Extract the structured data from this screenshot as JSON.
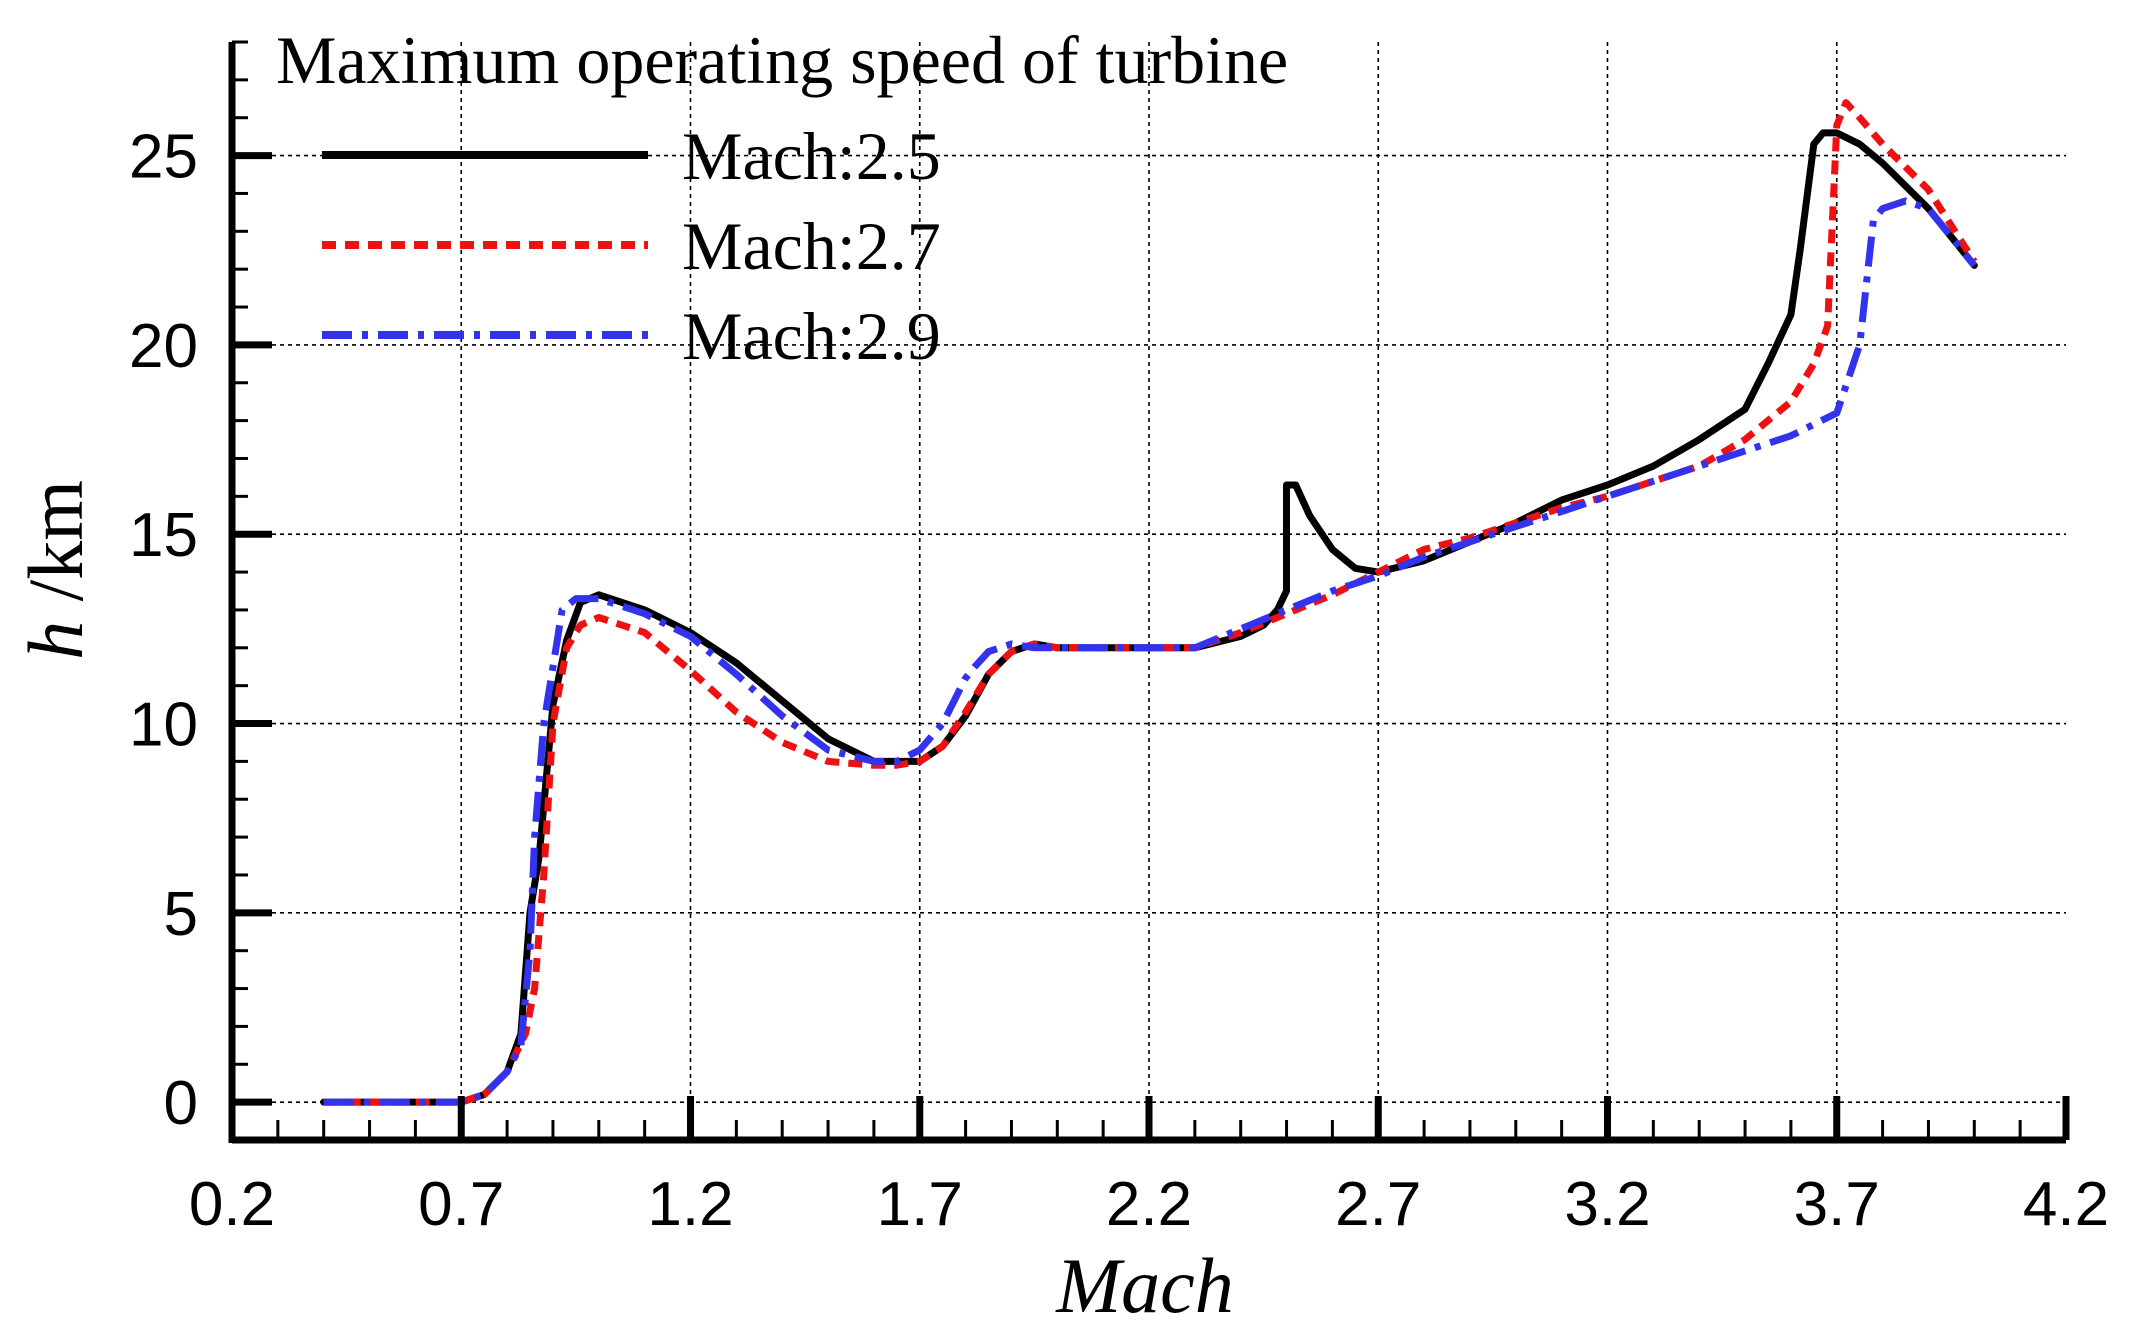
{
  "chart_data": {
    "type": "line",
    "title": "",
    "legend_title": "Maximum operating speed of turbine",
    "legend_position": "top-left",
    "xlabel": "Mach",
    "ylabel_var": "h",
    "ylabel_unit": " /km",
    "xlim": [
      0.2,
      4.2
    ],
    "ylim": [
      -1,
      28
    ],
    "xticks": [
      0.2,
      0.7,
      1.2,
      1.7,
      2.2,
      2.7,
      3.2,
      3.7,
      4.2
    ],
    "xtick_labels": [
      "0.2",
      "0.7",
      "1.2",
      "1.7",
      "2.2",
      "2.7",
      "3.2",
      "3.7",
      "4.2"
    ],
    "yticks": [
      0,
      5,
      10,
      15,
      20,
      25
    ],
    "ytick_labels": [
      "0",
      "5",
      "10",
      "15",
      "20",
      "25"
    ],
    "grid": true,
    "series": [
      {
        "name": "Mach:2.5",
        "color": "#000000",
        "style": "solid",
        "x": [
          0.4,
          0.5,
          0.6,
          0.7,
          0.75,
          0.8,
          0.83,
          0.85,
          0.87,
          0.9,
          0.93,
          0.96,
          1.0,
          1.1,
          1.2,
          1.3,
          1.4,
          1.5,
          1.6,
          1.65,
          1.7,
          1.75,
          1.8,
          1.85,
          1.9,
          1.95,
          2.0,
          2.1,
          2.2,
          2.3,
          2.4,
          2.45,
          2.48,
          2.5,
          2.5,
          2.52,
          2.55,
          2.6,
          2.65,
          2.7,
          2.8,
          2.9,
          3.0,
          3.1,
          3.2,
          3.3,
          3.4,
          3.5,
          3.55,
          3.6,
          3.62,
          3.65,
          3.67,
          3.7,
          3.75,
          3.8,
          3.9,
          4.0
        ],
        "values": [
          0,
          0,
          0,
          0,
          0.2,
          0.8,
          1.8,
          5.0,
          6.5,
          10.5,
          12.2,
          13.2,
          13.4,
          13.0,
          12.4,
          11.6,
          10.6,
          9.6,
          9.0,
          9.0,
          9.0,
          9.4,
          10.2,
          11.3,
          11.9,
          12.1,
          12.0,
          12.0,
          12.0,
          12.0,
          12.3,
          12.6,
          13.0,
          13.5,
          16.3,
          16.3,
          15.5,
          14.6,
          14.1,
          14.0,
          14.3,
          14.8,
          15.3,
          15.9,
          16.3,
          16.8,
          17.5,
          18.3,
          19.5,
          20.8,
          22.5,
          25.3,
          25.6,
          25.6,
          25.3,
          24.8,
          23.6,
          22.1
        ]
      },
      {
        "name": "Mach:2.7",
        "color": "#ee1111",
        "style": "dashed",
        "x": [
          0.4,
          0.5,
          0.6,
          0.7,
          0.75,
          0.8,
          0.84,
          0.86,
          0.88,
          0.9,
          0.93,
          0.96,
          1.0,
          1.1,
          1.2,
          1.3,
          1.4,
          1.5,
          1.6,
          1.65,
          1.7,
          1.75,
          1.8,
          1.85,
          1.9,
          1.95,
          2.0,
          2.1,
          2.2,
          2.3,
          2.4,
          2.5,
          2.6,
          2.7,
          2.8,
          2.9,
          3.0,
          3.1,
          3.2,
          3.3,
          3.4,
          3.5,
          3.6,
          3.65,
          3.68,
          3.7,
          3.72,
          3.75,
          3.8,
          3.9,
          4.0
        ],
        "values": [
          0,
          0,
          0,
          0,
          0.2,
          0.8,
          1.8,
          3.0,
          6.0,
          10.0,
          12.0,
          12.6,
          12.8,
          12.4,
          11.4,
          10.3,
          9.5,
          9.0,
          8.9,
          8.9,
          9.0,
          9.4,
          10.3,
          11.3,
          11.9,
          12.1,
          12.0,
          12.0,
          12.0,
          12.0,
          12.4,
          12.9,
          13.4,
          14.0,
          14.6,
          14.9,
          15.3,
          15.7,
          16.0,
          16.4,
          16.8,
          17.5,
          18.5,
          19.5,
          20.5,
          25.8,
          26.4,
          26.0,
          25.3,
          24.1,
          22.2
        ]
      },
      {
        "name": "Mach:2.9",
        "color": "#3333ee",
        "style": "dashdot",
        "x": [
          0.4,
          0.5,
          0.6,
          0.7,
          0.75,
          0.8,
          0.83,
          0.85,
          0.86,
          0.88,
          0.9,
          0.92,
          0.95,
          1.0,
          1.1,
          1.2,
          1.3,
          1.4,
          1.5,
          1.6,
          1.65,
          1.7,
          1.75,
          1.8,
          1.82,
          1.85,
          1.9,
          1.95,
          2.0,
          2.1,
          2.2,
          2.3,
          2.4,
          2.5,
          2.6,
          2.7,
          2.8,
          2.9,
          3.0,
          3.1,
          3.2,
          3.3,
          3.4,
          3.5,
          3.6,
          3.7,
          3.75,
          3.78,
          3.8,
          3.85,
          3.9,
          4.0
        ],
        "values": [
          0,
          0,
          0,
          0,
          0.2,
          0.8,
          1.5,
          4.0,
          7.0,
          10.0,
          11.5,
          13.0,
          13.3,
          13.3,
          12.9,
          12.3,
          11.3,
          10.2,
          9.3,
          9.0,
          9.0,
          9.3,
          10.0,
          11.2,
          11.5,
          11.9,
          12.1,
          12.0,
          12.0,
          12.0,
          12.0,
          12.0,
          12.5,
          13.0,
          13.5,
          13.9,
          14.4,
          14.8,
          15.2,
          15.6,
          16.0,
          16.4,
          16.8,
          17.2,
          17.6,
          18.2,
          20.0,
          23.3,
          23.6,
          23.8,
          23.6,
          22.1
        ]
      }
    ]
  }
}
